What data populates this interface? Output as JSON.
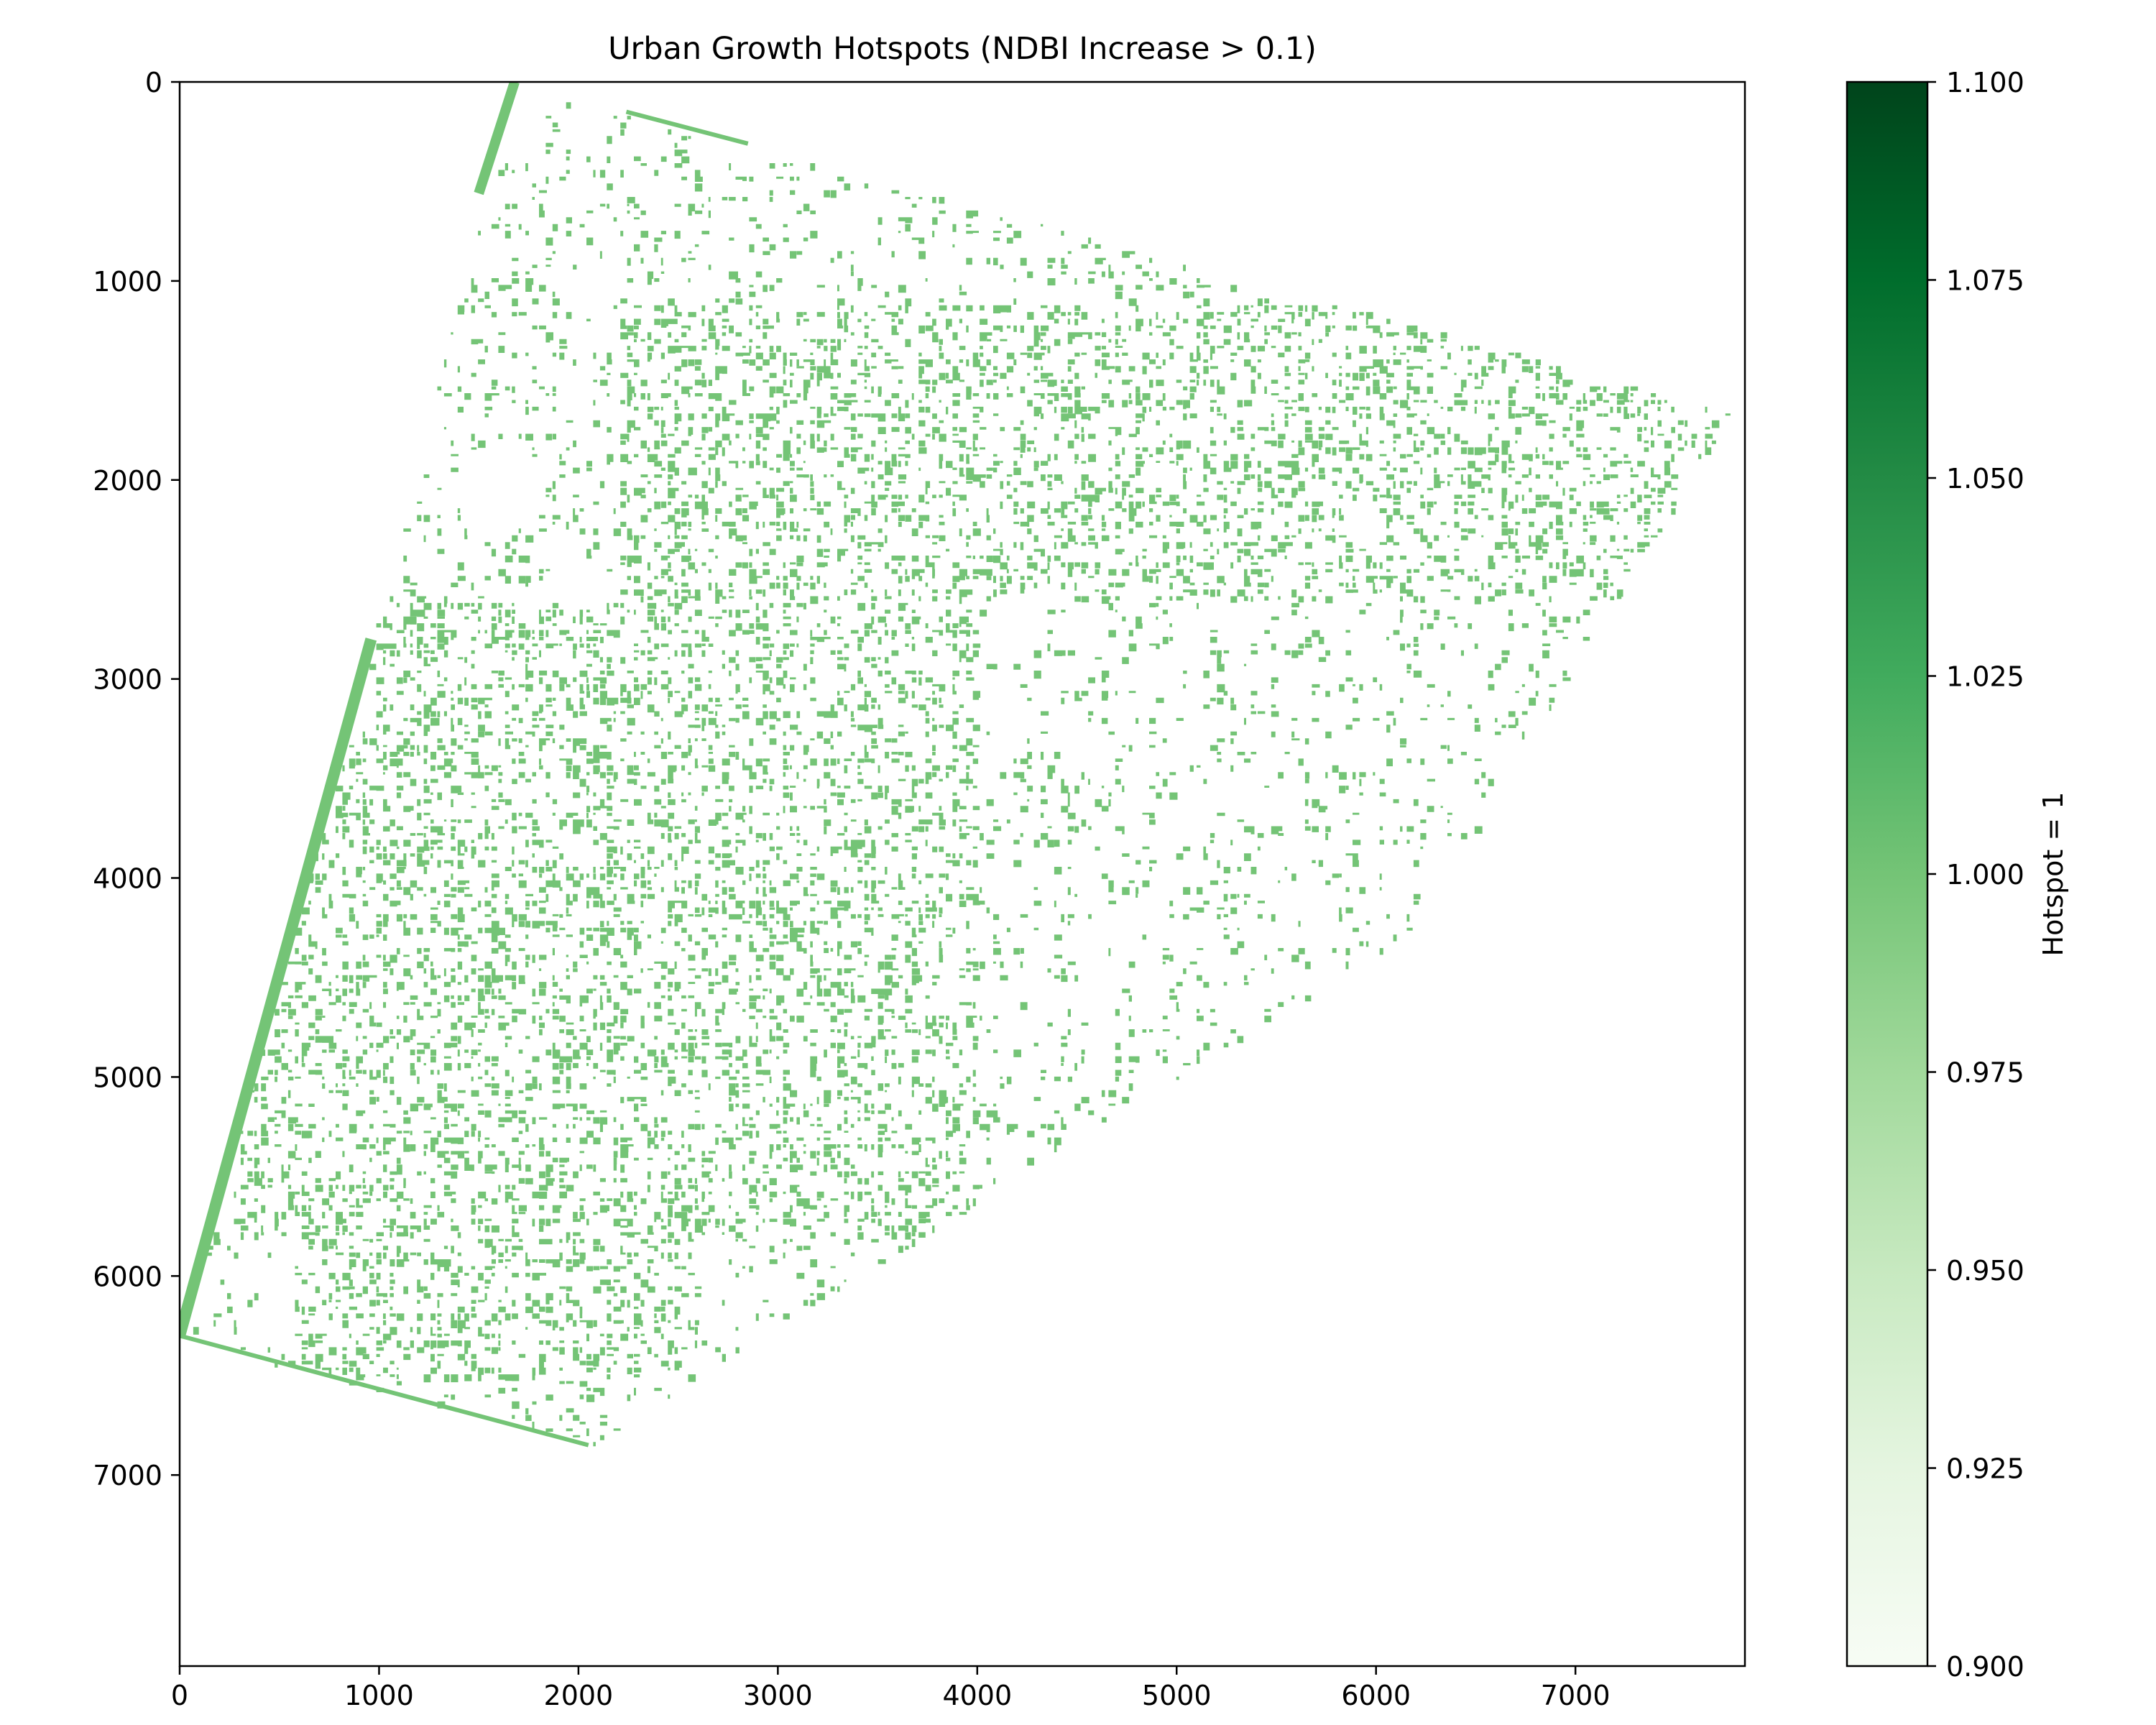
{
  "chart_data": {
    "type": "heatmap",
    "title": "Urban Growth Hotspots (NDBI Increase > 0.1)",
    "xlabel": "",
    "ylabel": "",
    "xlim": [
      0,
      7850
    ],
    "ylim": [
      7960,
      0
    ],
    "x_ticks": [
      "0",
      "1000",
      "2000",
      "3000",
      "4000",
      "5000",
      "6000",
      "7000"
    ],
    "x_tick_values": [
      0,
      1000,
      2000,
      3000,
      4000,
      5000,
      6000,
      7000
    ],
    "y_ticks": [
      "0",
      "1000",
      "2000",
      "3000",
      "4000",
      "5000",
      "6000",
      "7000"
    ],
    "y_tick_values": [
      0,
      1000,
      2000,
      3000,
      4000,
      5000,
      6000,
      7000
    ],
    "colorbar": {
      "label": "Hotspot = 1",
      "range": [
        0.9,
        1.1
      ],
      "ticks": [
        "0.900",
        "0.925",
        "0.950",
        "0.975",
        "1.000",
        "1.025",
        "1.050",
        "1.075",
        "1.100"
      ],
      "tick_values": [
        0.9,
        0.925,
        0.95,
        0.975,
        1.0,
        1.025,
        1.05,
        1.075,
        1.1
      ],
      "colormap": "Greens",
      "colors": [
        "#f7fcf5",
        "#e5f5e0",
        "#c7e9c0",
        "#a1d99b",
        "#74c476",
        "#41ab5d",
        "#238b45",
        "#006d2c",
        "#00441b"
      ]
    },
    "hotspot_value": 1.0,
    "hotspot_color": "#74c476",
    "legend": "none",
    "grid": false,
    "swath_outline": [
      [
        1680,
        0
      ],
      [
        7780,
        1650
      ],
      [
        6200,
        4250
      ],
      [
        2050,
        6850
      ],
      [
        0,
        6300
      ],
      [
        960,
        2800
      ]
    ],
    "dense_regions": [
      {
        "x": [
          2200,
          7700
        ],
        "y": [
          1100,
          2600
        ]
      },
      {
        "x": [
          300,
          4000
        ],
        "y": [
          2600,
          5800
        ]
      },
      {
        "x": [
          600,
          2600
        ],
        "y": [
          5400,
          6500
        ]
      }
    ]
  }
}
